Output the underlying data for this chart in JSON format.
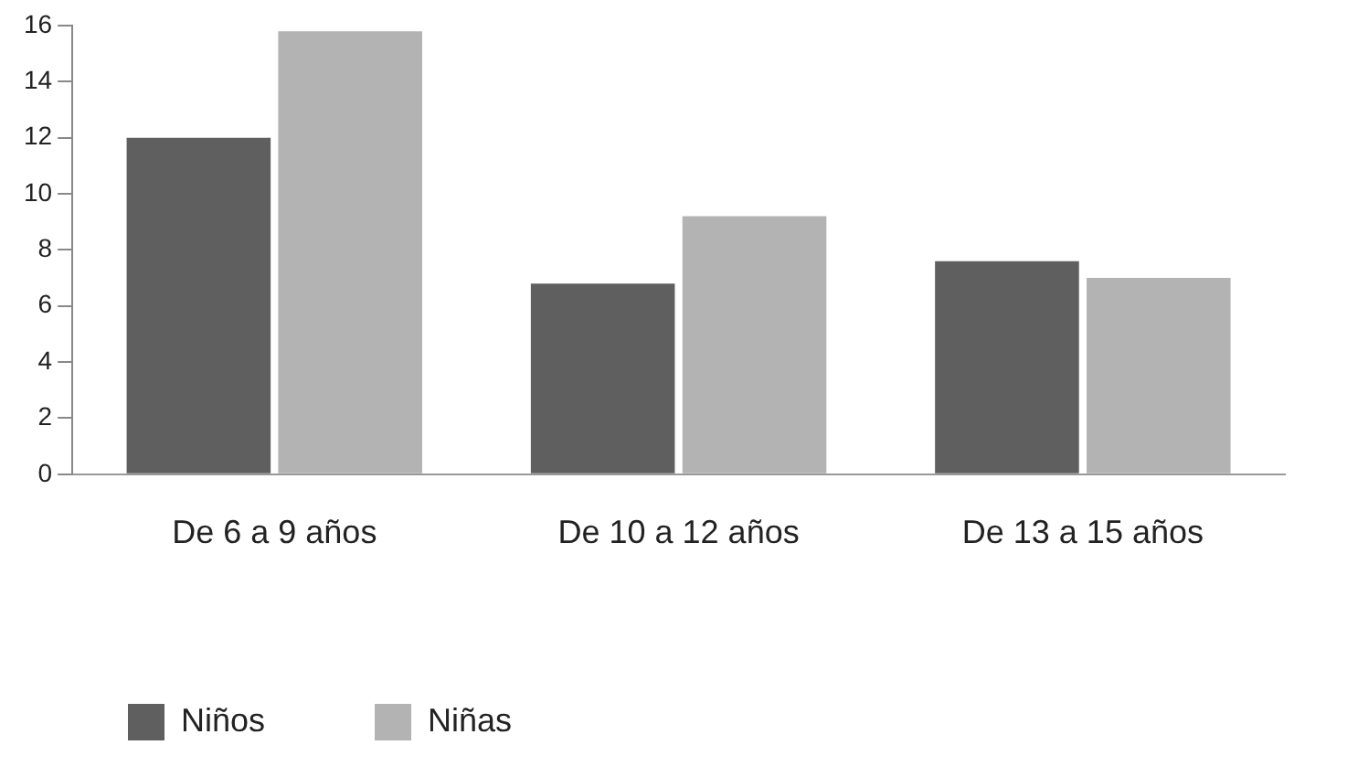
{
  "chart_data": {
    "type": "bar",
    "categories": [
      "De 6 a 9 años",
      "De 10 a 12 años",
      "De 13 a 15 años"
    ],
    "series": [
      {
        "name": "Niños",
        "color": "#5f5f5f",
        "values": [
          12,
          6.8,
          7.6
        ]
      },
      {
        "name": "Niñas",
        "color": "#b3b3b3",
        "values": [
          15.8,
          9.2,
          7
        ]
      }
    ],
    "ylim": [
      0,
      16
    ],
    "yticks": [
      0,
      2,
      4,
      6,
      8,
      10,
      12,
      14,
      16
    ],
    "grid": false,
    "legend": "bottom left"
  }
}
